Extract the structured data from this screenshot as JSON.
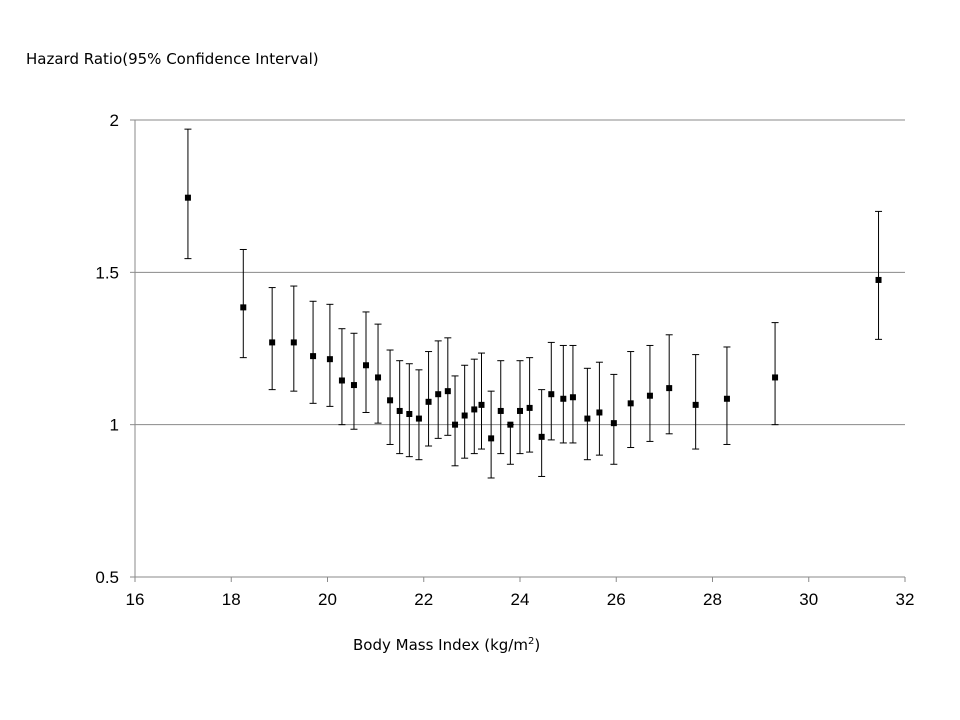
{
  "chart_data": {
    "type": "scatter",
    "title": "",
    "ylabel": "Hazard Ratio(95% Confidence Interval)",
    "xlabel_main": "Body Mass Index (kg/m",
    "xlabel_sup": "2",
    "xlabel_close": ")",
    "xlim": [
      16,
      32
    ],
    "ylim": [
      0.5,
      2
    ],
    "x_ticks": [
      16,
      18,
      20,
      22,
      24,
      26,
      28,
      30,
      32
    ],
    "y_ticks": [
      0.5,
      1,
      1.5,
      2
    ],
    "y_tick_labels": [
      "0.5",
      "1",
      "1.5",
      "2"
    ],
    "x_tick_labels": [
      "16",
      "18",
      "20",
      "22",
      "24",
      "26",
      "28",
      "30",
      "32"
    ],
    "grid": "horizontal",
    "error_bars": true,
    "points": [
      {
        "x": 17.1,
        "y": 1.745,
        "lo": 1.545,
        "hi": 1.97
      },
      {
        "x": 18.25,
        "y": 1.385,
        "lo": 1.22,
        "hi": 1.575
      },
      {
        "x": 18.85,
        "y": 1.27,
        "lo": 1.115,
        "hi": 1.45
      },
      {
        "x": 19.3,
        "y": 1.27,
        "lo": 1.11,
        "hi": 1.455
      },
      {
        "x": 19.7,
        "y": 1.225,
        "lo": 1.07,
        "hi": 1.405
      },
      {
        "x": 20.05,
        "y": 1.215,
        "lo": 1.06,
        "hi": 1.395
      },
      {
        "x": 20.3,
        "y": 1.145,
        "lo": 1.0,
        "hi": 1.315
      },
      {
        "x": 20.55,
        "y": 1.13,
        "lo": 0.985,
        "hi": 1.3
      },
      {
        "x": 20.8,
        "y": 1.195,
        "lo": 1.04,
        "hi": 1.37
      },
      {
        "x": 21.05,
        "y": 1.155,
        "lo": 1.005,
        "hi": 1.33
      },
      {
        "x": 21.3,
        "y": 1.08,
        "lo": 0.935,
        "hi": 1.245
      },
      {
        "x": 21.5,
        "y": 1.045,
        "lo": 0.905,
        "hi": 1.21
      },
      {
        "x": 21.7,
        "y": 1.035,
        "lo": 0.895,
        "hi": 1.2
      },
      {
        "x": 21.9,
        "y": 1.02,
        "lo": 0.885,
        "hi": 1.18
      },
      {
        "x": 22.1,
        "y": 1.075,
        "lo": 0.93,
        "hi": 1.24
      },
      {
        "x": 22.3,
        "y": 1.1,
        "lo": 0.955,
        "hi": 1.275
      },
      {
        "x": 22.5,
        "y": 1.11,
        "lo": 0.965,
        "hi": 1.285
      },
      {
        "x": 22.65,
        "y": 1.0,
        "lo": 0.865,
        "hi": 1.16
      },
      {
        "x": 22.85,
        "y": 1.03,
        "lo": 0.89,
        "hi": 1.195
      },
      {
        "x": 23.05,
        "y": 1.05,
        "lo": 0.905,
        "hi": 1.215
      },
      {
        "x": 23.2,
        "y": 1.065,
        "lo": 0.92,
        "hi": 1.235
      },
      {
        "x": 23.4,
        "y": 0.955,
        "lo": 0.825,
        "hi": 1.11
      },
      {
        "x": 23.6,
        "y": 1.045,
        "lo": 0.905,
        "hi": 1.21
      },
      {
        "x": 23.8,
        "y": 1.0,
        "lo": 0.87,
        "hi": 1.0
      },
      {
        "x": 24.0,
        "y": 1.045,
        "lo": 0.905,
        "hi": 1.21
      },
      {
        "x": 24.2,
        "y": 1.055,
        "lo": 0.91,
        "hi": 1.22
      },
      {
        "x": 24.45,
        "y": 0.96,
        "lo": 0.83,
        "hi": 1.115
      },
      {
        "x": 24.65,
        "y": 1.1,
        "lo": 0.95,
        "hi": 1.27
      },
      {
        "x": 24.9,
        "y": 1.085,
        "lo": 0.94,
        "hi": 1.26
      },
      {
        "x": 25.1,
        "y": 1.09,
        "lo": 0.94,
        "hi": 1.26
      },
      {
        "x": 25.4,
        "y": 1.02,
        "lo": 0.885,
        "hi": 1.185
      },
      {
        "x": 25.65,
        "y": 1.04,
        "lo": 0.9,
        "hi": 1.205
      },
      {
        "x": 25.95,
        "y": 1.005,
        "lo": 0.87,
        "hi": 1.165
      },
      {
        "x": 26.3,
        "y": 1.07,
        "lo": 0.925,
        "hi": 1.24
      },
      {
        "x": 26.7,
        "y": 1.095,
        "lo": 0.945,
        "hi": 1.26
      },
      {
        "x": 27.1,
        "y": 1.12,
        "lo": 0.97,
        "hi": 1.295
      },
      {
        "x": 27.65,
        "y": 1.065,
        "lo": 0.92,
        "hi": 1.23
      },
      {
        "x": 28.3,
        "y": 1.085,
        "lo": 0.935,
        "hi": 1.255
      },
      {
        "x": 29.3,
        "y": 1.155,
        "lo": 1.0,
        "hi": 1.335
      },
      {
        "x": 31.45,
        "y": 1.475,
        "lo": 1.28,
        "hi": 1.7
      }
    ]
  }
}
